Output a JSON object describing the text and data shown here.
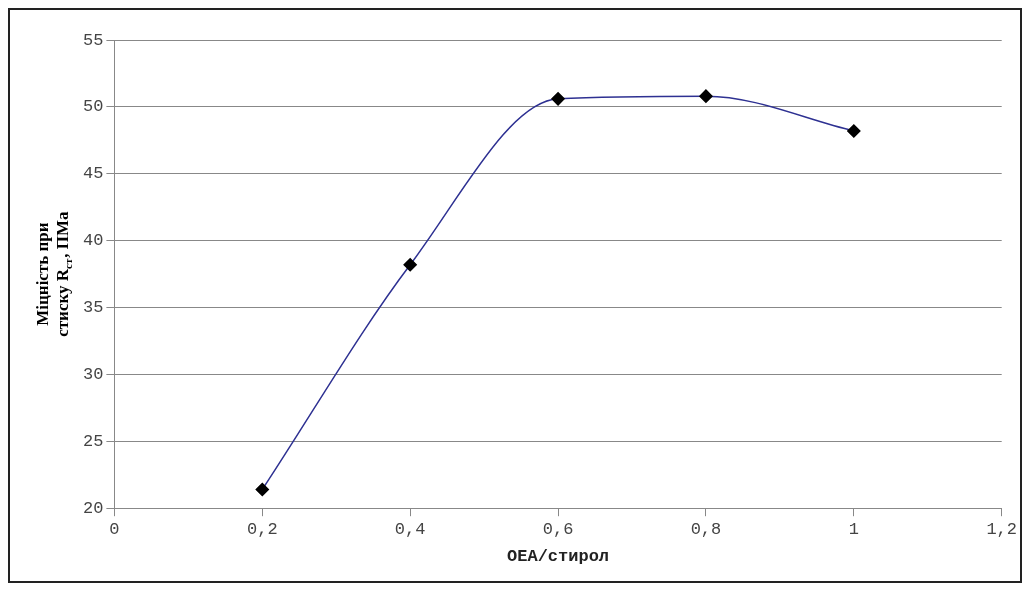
{
  "chart_data": {
    "type": "line",
    "xlabel": "OEA/стирол",
    "ylabel": "Міцність при стиску R$_{ст}$, ПМа",
    "x": [
      0.2,
      0.4,
      0.6,
      0.8,
      1
    ],
    "series": [
      {
        "color": "#2e3192",
        "values": [
          21.4,
          38.2,
          50.6,
          50.8,
          48.2
        ]
      }
    ],
    "xlim": [
      0,
      1.2
    ],
    "xticks": [
      {
        "value": 0,
        "label": "0"
      },
      {
        "value": 0.2,
        "label": "0,2"
      },
      {
        "value": 0.4,
        "label": "0,4"
      },
      {
        "value": 0.6,
        "label": "0,6"
      },
      {
        "value": 0.8,
        "label": "0,8"
      },
      {
        "value": 1,
        "label": "1"
      },
      {
        "value": 1.2,
        "label": "1,2"
      }
    ],
    "ylim": [
      20,
      55
    ],
    "yticks": [
      20,
      25,
      30,
      35,
      40,
      45,
      50,
      55
    ],
    "grid": "y",
    "legend": false,
    "marker": "diamond",
    "line_style": "solid"
  }
}
